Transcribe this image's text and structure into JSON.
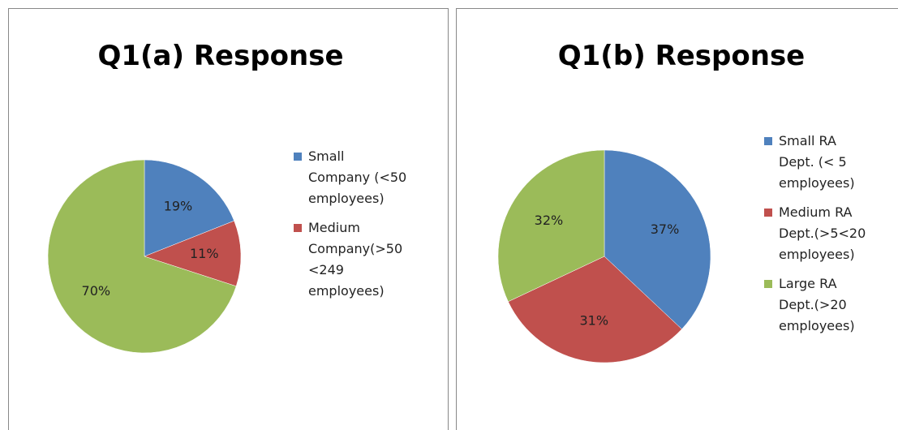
{
  "chart_data": [
    {
      "type": "pie",
      "title": "Q1(a) Response",
      "categories": [
        "Small Company (<50 employees)",
        "Medium Company(>50 <249 employees)",
        null
      ],
      "values": [
        19,
        11,
        70
      ],
      "value_labels": [
        "19%",
        "11%",
        "70%"
      ],
      "colors": [
        "#4f81bd",
        "#c0504d",
        "#9bbb59"
      ]
    },
    {
      "type": "pie",
      "title": "Q1(b) Response",
      "categories": [
        "Small RA Dept. (< 5 employees)",
        "Medium RA Dept.(>5<20 employees)",
        "Large RA Dept.(>20 employees)"
      ],
      "values": [
        37,
        31,
        32
      ],
      "value_labels": [
        "37%",
        "31%",
        "32%"
      ],
      "colors": [
        "#4f81bd",
        "#c0504d",
        "#9bbb59"
      ]
    }
  ]
}
